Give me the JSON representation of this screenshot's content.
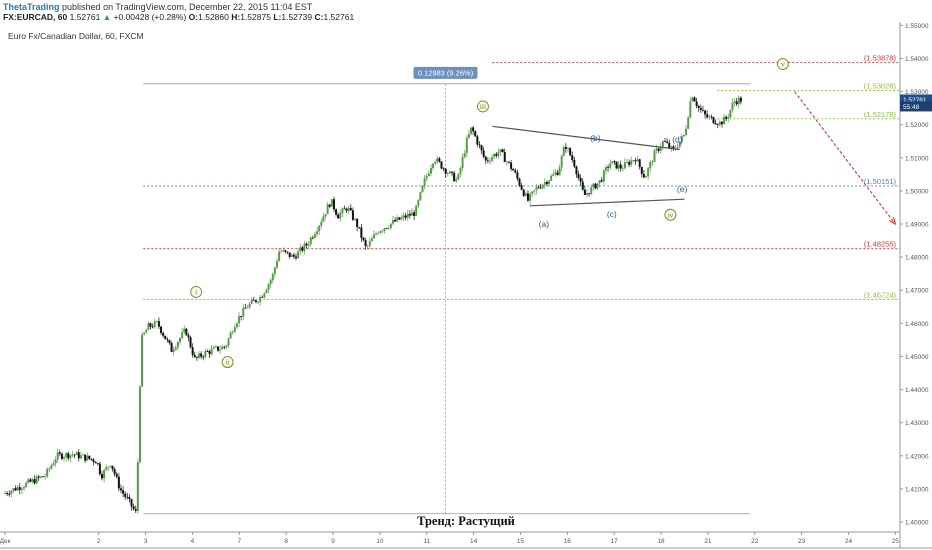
{
  "header": {
    "author": "ThetaTrading",
    "published_text": "published on TradingView.com, December 22, 2015 11:04 EST",
    "symbol_line": "FX:EURCAD, 60",
    "last": "1.52761",
    "change": "+0.00428 (+0.28%)",
    "o_label": "O:",
    "o": "1.52860",
    "h_label": "H:",
    "h": "1.52875",
    "l_label": "L:",
    "l": "1.52739",
    "c_label": "C:",
    "c": "1.52761",
    "title": "Euro Fx/Canadian Dollar, 60, FXCM"
  },
  "footer": {
    "trend_text": "Тренд: Растущий"
  },
  "colors": {
    "up": "#5b9a4d",
    "down": "#111111",
    "bg": "#ffffff",
    "red": "#e03030",
    "green": "#8cbf3f",
    "blue": "#3f7fc0",
    "wave": "#555555",
    "label_blue": "#2a5a8a",
    "label_green": "#6a8a2a",
    "price_tag": "#1f4e8c"
  },
  "chart_data": {
    "type": "candlestick",
    "ylim": [
      1.397,
      1.551
    ],
    "y_ticks": [
      "1.55000",
      "1.54000",
      "1.53000",
      "1.52000",
      "1.51000",
      "1.50000",
      "1.49000",
      "1.48000",
      "1.47000",
      "1.46000",
      "1.45000",
      "1.44000",
      "1.43000",
      "1.42000",
      "1.41000",
      "1.40000"
    ],
    "x_tick_labels": [
      "Дек",
      "2",
      "3",
      "4",
      "7",
      "8",
      "9",
      "10",
      "11",
      "14",
      "15",
      "16",
      "17",
      "18",
      "21",
      "22",
      "23",
      "24",
      "25"
    ],
    "x_tick_days": [
      0,
      2,
      3,
      4,
      5,
      6,
      7,
      8,
      9,
      10,
      11,
      12,
      13,
      14,
      15,
      16,
      17,
      18,
      19
    ],
    "x_range_days": [
      0,
      19.1
    ],
    "price_path": [
      [
        0,
        1.4085
      ],
      [
        0.9,
        1.414
      ],
      [
        1.15,
        1.42
      ],
      [
        1.5,
        1.4205
      ],
      [
        2,
        1.4185
      ],
      [
        2.1,
        1.414
      ],
      [
        2.3,
        1.418
      ],
      [
        2.5,
        1.41
      ],
      [
        2.65,
        1.407
      ],
      [
        2.85,
        1.4025
      ],
      [
        2.95,
        1.455
      ],
      [
        3.1,
        1.459
      ],
      [
        3.3,
        1.46
      ],
      [
        3.6,
        1.452
      ],
      [
        3.9,
        1.458
      ],
      [
        4.1,
        1.449
      ],
      [
        4.3,
        1.451
      ],
      [
        4.5,
        1.452
      ],
      [
        4.75,
        1.453
      ],
      [
        4.95,
        1.46
      ],
      [
        5.2,
        1.465
      ],
      [
        5.5,
        1.468
      ],
      [
        5.75,
        1.474
      ],
      [
        5.9,
        1.482
      ],
      [
        6.2,
        1.48
      ],
      [
        6.5,
        1.484
      ],
      [
        6.75,
        1.49
      ],
      [
        7.0,
        1.497
      ],
      [
        7.15,
        1.4925
      ],
      [
        7.35,
        1.495
      ],
      [
        7.55,
        1.49
      ],
      [
        7.75,
        1.4825
      ],
      [
        8.0,
        1.488
      ],
      [
        8.4,
        1.491
      ],
      [
        8.8,
        1.4935
      ],
      [
        9.0,
        1.503
      ],
      [
        9.2,
        1.51
      ],
      [
        9.5,
        1.5055
      ],
      [
        9.7,
        1.503
      ],
      [
        9.9,
        1.515
      ],
      [
        10.0,
        1.519
      ],
      [
        10.3,
        1.509
      ],
      [
        10.6,
        1.512
      ],
      [
        10.9,
        1.506
      ],
      [
        11.2,
        1.497
      ],
      [
        11.4,
        1.501
      ],
      [
        11.6,
        1.503
      ],
      [
        11.85,
        1.506
      ],
      [
        12.0,
        1.514
      ],
      [
        12.2,
        1.508
      ],
      [
        12.4,
        1.4985
      ],
      [
        12.55,
        1.5005
      ],
      [
        12.75,
        1.503
      ],
      [
        12.95,
        1.5085
      ],
      [
        13.2,
        1.507
      ],
      [
        13.5,
        1.51
      ],
      [
        13.7,
        1.504
      ],
      [
        13.9,
        1.511
      ],
      [
        14.1,
        1.515
      ],
      [
        14.3,
        1.512
      ],
      [
        14.55,
        1.517
      ],
      [
        14.7,
        1.5295
      ],
      [
        14.85,
        1.525
      ],
      [
        15.0,
        1.5225
      ],
      [
        15.3,
        1.5205
      ],
      [
        15.45,
        1.522
      ],
      [
        15.6,
        1.527
      ],
      [
        15.72,
        1.5275
      ]
    ],
    "horizontal_levels": [
      {
        "label": "(1.53878)",
        "value": 1.53878,
        "color": "red",
        "x_from": 10.4,
        "label_color": "red"
      },
      {
        "label": "(1.53028)",
        "value": 1.53028,
        "color": "green",
        "x_from": 15.2,
        "label_color": "green"
      },
      {
        "label": "(1.52178)",
        "value": 1.52178,
        "color": "green",
        "x_from": 15.2,
        "label_color": "green"
      },
      {
        "label": "(1.50151)",
        "value": 1.50151,
        "color": "blue",
        "x_from": 2.95,
        "label_color": "blue"
      },
      {
        "label": "(1.48255)",
        "value": 1.48255,
        "color": "red",
        "x_from": 2.95,
        "label_color": "red"
      },
      {
        "label": "(1.46724)",
        "value": 1.46724,
        "color": "green",
        "x_from": 2.95,
        "label_color": "green"
      }
    ],
    "measure": {
      "label": "0.12983 (9.26%)",
      "low": 1.4025,
      "high": 1.53233,
      "x_from": 2.95,
      "x_to": 15.9,
      "x_mid": 9.4
    },
    "triangle": {
      "upper": [
        [
          10.4,
          1.5195
        ],
        [
          14.4,
          1.5125
        ]
      ],
      "lower": [
        [
          11.2,
          1.4955
        ],
        [
          14.5,
          1.4975
        ]
      ]
    },
    "wave_labels": [
      {
        "text": "i",
        "x": 4.08,
        "y": 1.4695,
        "style": "circle",
        "color": "green"
      },
      {
        "text": "ii",
        "x": 4.75,
        "y": 1.4483,
        "style": "circle",
        "color": "green"
      },
      {
        "text": "iii",
        "x": 10.2,
        "y": 1.5255,
        "style": "circle",
        "color": "green"
      },
      {
        "text": "iv",
        "x": 14.2,
        "y": 1.4928,
        "style": "circle",
        "color": "green"
      },
      {
        "text": "v",
        "x": 16.6,
        "y": 1.5383,
        "style": "circle",
        "color": "green"
      },
      {
        "text": "(a)",
        "x": 11.5,
        "y": 1.49,
        "style": "text",
        "color": "blue"
      },
      {
        "text": "(b)",
        "x": 12.6,
        "y": 1.516,
        "style": "text",
        "color": "blue"
      },
      {
        "text": "(c)",
        "x": 12.95,
        "y": 1.493,
        "style": "text",
        "color": "blue"
      },
      {
        "text": "(d)",
        "x": 14.35,
        "y": 1.5155,
        "style": "text",
        "color": "blue"
      },
      {
        "text": "(e)",
        "x": 14.45,
        "y": 1.5005,
        "style": "text",
        "color": "blue"
      }
    ],
    "projection": {
      "from": [
        16.85,
        1.53
      ],
      "to": [
        19.0,
        1.49
      ],
      "color": "red"
    },
    "price_tags": [
      {
        "text": "1.52761",
        "value": 1.52761
      },
      {
        "text": "55:48",
        "value": 1.5255
      }
    ]
  }
}
